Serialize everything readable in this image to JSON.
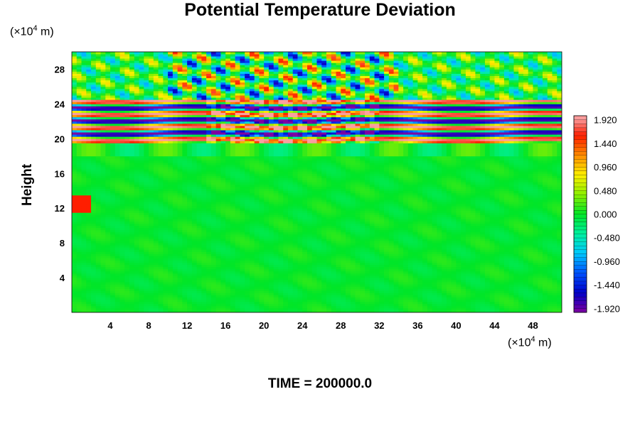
{
  "chart_data": {
    "type": "heatmap",
    "title": "Potential Temperature Deviation",
    "ylabel": "Height",
    "xlabel": "",
    "y_unit": {
      "prefix": "(×10",
      "exp": "4",
      "suffix": " m)"
    },
    "x_unit": {
      "prefix": "(×10",
      "exp": "4",
      "suffix": " m)"
    },
    "xlim": [
      0,
      51
    ],
    "ylim": [
      0,
      30
    ],
    "x_ticks": [
      "4",
      "8",
      "12",
      "16",
      "20",
      "24",
      "28",
      "32",
      "36",
      "40",
      "44",
      "48"
    ],
    "x_tick_values": [
      4,
      8,
      12,
      16,
      20,
      24,
      28,
      32,
      36,
      40,
      44,
      48
    ],
    "y_ticks": [
      "4",
      "8",
      "12",
      "16",
      "20",
      "24",
      "28"
    ],
    "y_tick_values": [
      4,
      8,
      12,
      16,
      20,
      24,
      28
    ],
    "colorbar": {
      "range": [
        -2.0,
        2.0
      ],
      "tick_labels": [
        "1.920",
        "1.440",
        "0.960",
        "0.480",
        "0.000",
        "-0.480",
        "-0.960",
        "-1.440",
        "-1.920"
      ],
      "tick_values": [
        1.92,
        1.44,
        0.96,
        0.48,
        0.0,
        -0.48,
        -0.96,
        -1.44,
        -1.92
      ]
    },
    "field_description_values": {
      "background_level": 0.0,
      "wave_layer_height_range": [
        19.5,
        24.5
      ],
      "upper_oscillation_height_range": [
        24.5,
        30
      ]
    },
    "footer": "TIME = 200000.0"
  }
}
